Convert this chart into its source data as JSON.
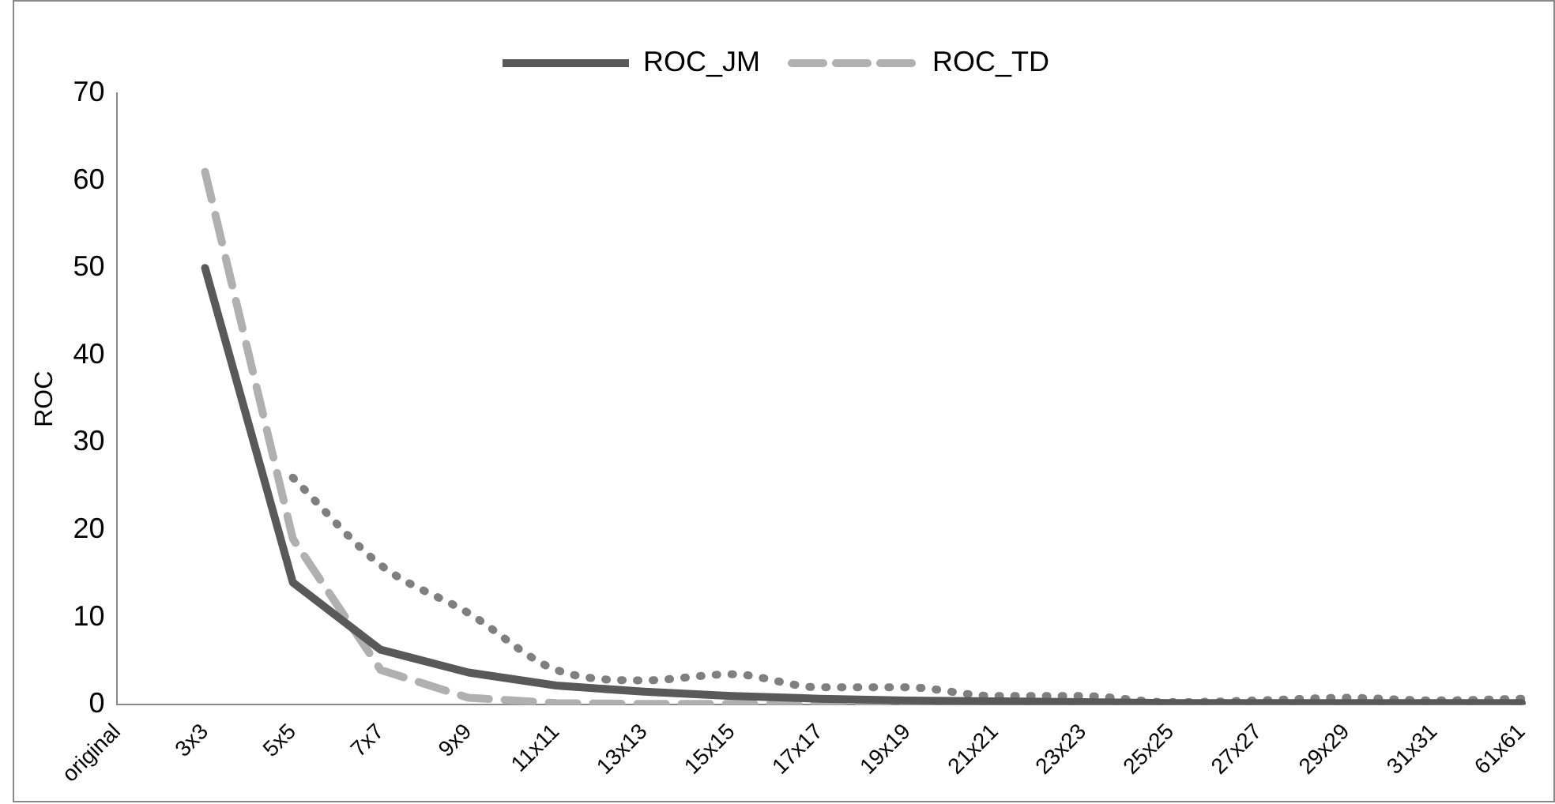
{
  "chart_data": {
    "type": "line",
    "ylabel": "ROC",
    "categories": [
      "original",
      "3x3",
      "5x5",
      "7x7",
      "9x9",
      "11x11",
      "13x13",
      "15x15",
      "17x17",
      "19x19",
      "21x21",
      "23x23",
      "25x25",
      "27x27",
      "29x29",
      "31x31",
      "61x61"
    ],
    "series": [
      {
        "name": "ROC_JM",
        "color": "#595959",
        "line_style": "solid",
        "values": [
          null,
          50,
          14,
          6.3,
          3.7,
          2.2,
          1.5,
          1.0,
          0.7,
          0.5,
          0.4,
          0.3,
          0.2,
          0.2,
          0.2,
          0.2,
          0.2
        ]
      },
      {
        "name": "ROC_TD",
        "color": "#b0b0b0",
        "line_style": "dashed",
        "values": [
          null,
          61,
          19,
          4,
          0.8,
          0.2,
          0.1,
          0.1,
          0.1,
          0.1,
          0.1,
          0.1,
          0.1,
          0.1,
          0.1,
          0.1,
          0.1
        ]
      },
      {
        "color": "#7f7f7f",
        "line_style": "dotted",
        "values": [
          null,
          null,
          26,
          16,
          10.5,
          4,
          2.8,
          3.5,
          2,
          2,
          1,
          1,
          0.3,
          0.5,
          0.8,
          0.5,
          0.7
        ]
      }
    ],
    "ylim": [
      0,
      70
    ],
    "yticks": [
      0,
      10,
      20,
      30,
      40,
      50,
      60,
      70
    ],
    "grid": false,
    "legend": "top",
    "marker": "none"
  }
}
